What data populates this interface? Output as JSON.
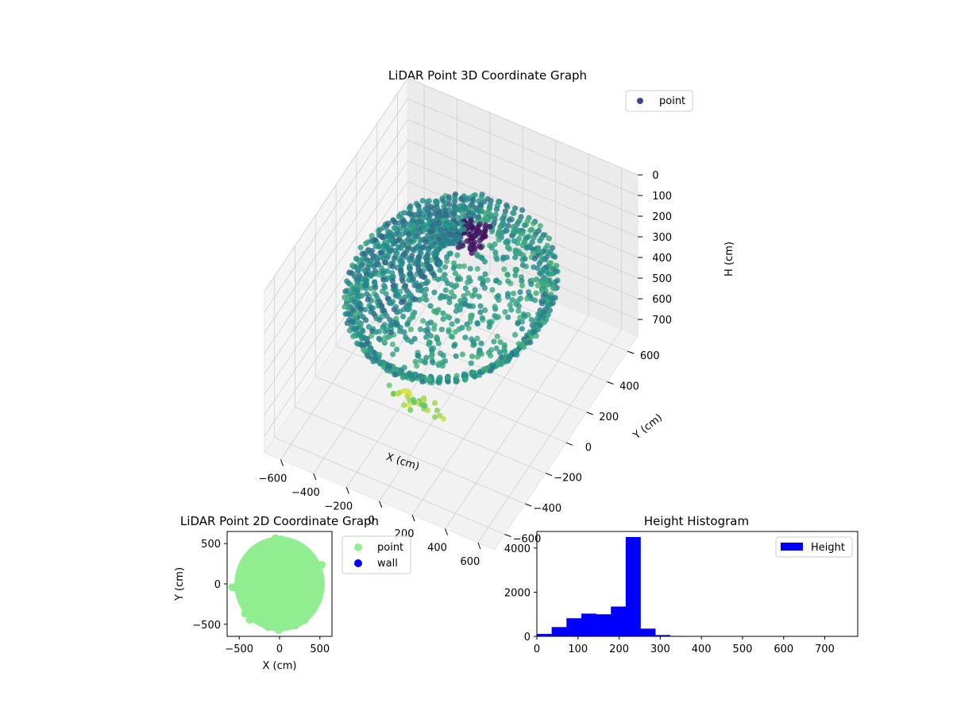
{
  "colors": {
    "viridis_dark": "#440154",
    "viridis_mid": "#21918c",
    "viridis_light": "#7ad151",
    "scatter2d_point": "#90ee90",
    "scatter2d_wall": "#0000ff",
    "hist_bar": "#0000ff",
    "pane": "#f2f2f2",
    "grid": "#d0d0d0"
  },
  "chart_data": [
    {
      "id": "lidar3d",
      "type": "scatter",
      "projection": "3d",
      "title": "LiDAR Point 3D Coordinate Graph",
      "xlabel": "X (cm)",
      "ylabel": "Y (cm)",
      "zlabel": "H (cm)",
      "xlim": [
        -700,
        700
      ],
      "ylim": [
        -700,
        700
      ],
      "zlim": [
        780,
        0
      ],
      "z_inverted": true,
      "xticks": [
        "−600",
        "−400",
        "−200",
        "0",
        "200",
        "400",
        "600"
      ],
      "yticks": [
        "−600",
        "−400",
        "−200",
        "0",
        "200",
        "400",
        "600"
      ],
      "zticks": [
        "0",
        "100",
        "200",
        "300",
        "400",
        "500",
        "600",
        "700"
      ],
      "colormap": "viridis",
      "legend": [
        "point"
      ],
      "legend_position": "upper-right",
      "grid": true,
      "series": [
        {
          "name": "point",
          "description_ref": "ring",
          "ring_radius_cm": 550,
          "ring_height_cm": [
            250,
            310
          ],
          "ceiling_height_cm": [
            80,
            200
          ],
          "floor_spike_height_cm": 700
        }
      ]
    },
    {
      "id": "lidar2d",
      "type": "scatter",
      "title": "LiDAR Point 2D Coordinate Graph",
      "xlabel": "X (cm)",
      "ylabel": "Y (cm)",
      "xlim": [
        -650,
        650
      ],
      "ylim": [
        -650,
        650
      ],
      "xticks": [
        "−500",
        "0",
        "500"
      ],
      "yticks": [
        "−500",
        "0",
        "500"
      ],
      "legend": [
        "point",
        "wall"
      ],
      "legend_position": "outside-right",
      "series": [
        {
          "name": "point",
          "shape": "disc",
          "radius_cm": 560
        },
        {
          "name": "wall",
          "points": []
        }
      ]
    },
    {
      "id": "height_hist",
      "type": "bar",
      "subtype": "histogram",
      "title": "Height Histogram",
      "xlabel": "",
      "ylabel": "",
      "xlim": [
        0,
        780
      ],
      "ylim": [
        0,
        4750
      ],
      "xticks": [
        "0",
        "100",
        "200",
        "300",
        "400",
        "500",
        "600",
        "700"
      ],
      "yticks": [
        "0",
        "2000",
        "4000"
      ],
      "legend": [
        "Height"
      ],
      "legend_position": "upper-right",
      "bin_width": 36,
      "bin_edges": [
        0,
        36,
        72,
        108,
        144,
        180,
        216,
        252,
        288,
        324,
        360,
        396,
        432,
        468,
        504,
        540,
        576,
        612,
        648,
        684,
        720,
        756
      ],
      "values": [
        110,
        420,
        820,
        1030,
        1000,
        1350,
        4500,
        350,
        60,
        20,
        10,
        8,
        6,
        5,
        5,
        4,
        3,
        3,
        2,
        2,
        2
      ]
    }
  ]
}
